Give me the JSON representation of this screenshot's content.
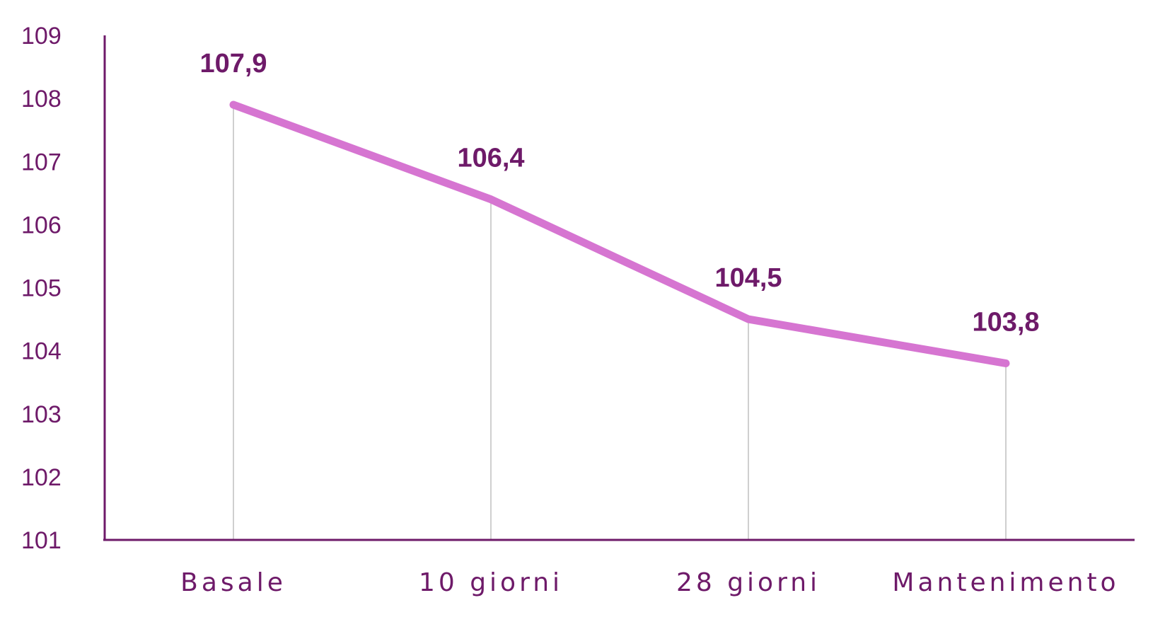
{
  "chart_data": {
    "type": "line",
    "categories": [
      "Basale",
      "10 giorni",
      "28 giorni",
      "Mantenimento"
    ],
    "series": [
      {
        "values": [
          107.9,
          106.4,
          104.5,
          103.8
        ]
      }
    ],
    "data_labels": [
      "107,9",
      "106,4",
      "104,5",
      "103,8"
    ],
    "y_ticks": [
      "101",
      "102",
      "103",
      "104",
      "105",
      "106",
      "107",
      "108",
      "109"
    ],
    "ylim": [
      101,
      109
    ],
    "grid": false,
    "drop_lines": true,
    "colors": {
      "line": "#d675d1",
      "axis": "#6e1a69",
      "text": "#6e1a69",
      "drop_line": "#cfcfcf"
    }
  }
}
